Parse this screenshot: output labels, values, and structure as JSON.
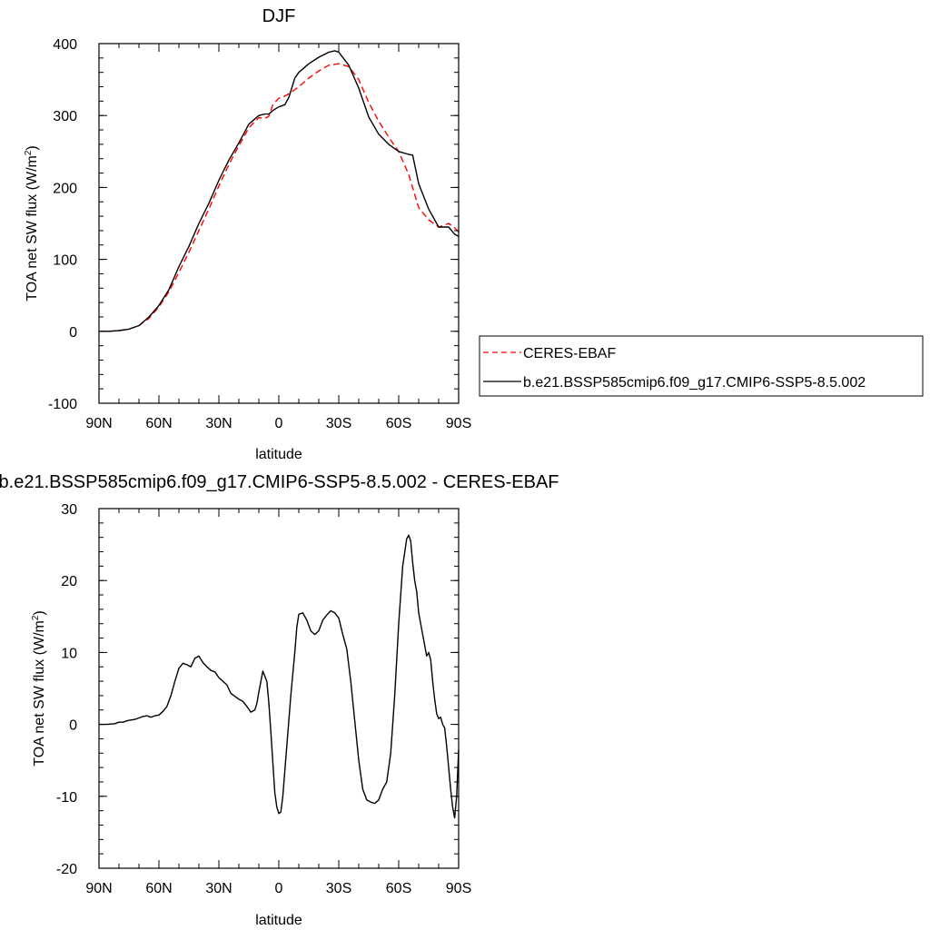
{
  "chart_data": [
    {
      "type": "line",
      "title": "DJF",
      "xlabel": "latitude",
      "ylabel": "TOA net SW flux (W/m",
      "ylabel_sup": "2",
      "ylabel_close": ")",
      "xlim": [
        90,
        -90
      ],
      "ylim": [
        -100,
        400
      ],
      "x_ticks": [
        90,
        60,
        30,
        0,
        -30,
        -60,
        -90
      ],
      "x_tick_labels": [
        "90N",
        "60N",
        "30N",
        "0",
        "30S",
        "60S",
        "90S"
      ],
      "y_ticks": [
        -100,
        0,
        100,
        200,
        300,
        400
      ],
      "y_tick_labels": [
        "-100",
        "0",
        "100",
        "200",
        "300",
        "400"
      ],
      "legend_position": "right",
      "series": [
        {
          "name": "CERES-EBAF",
          "color": "#ff0000",
          "dash": "dashed",
          "x": [
            90,
            85,
            80,
            75,
            70,
            65,
            60,
            55,
            50,
            45,
            40,
            35,
            30,
            25,
            20,
            15,
            10,
            7,
            5,
            3,
            0,
            -3,
            -5,
            -10,
            -15,
            -20,
            -25,
            -30,
            -35,
            -40,
            -45,
            -50,
            -55,
            -60,
            -65,
            -70,
            -75,
            -80,
            -85,
            -88,
            -90
          ],
          "y": [
            0,
            0,
            1,
            3,
            8,
            18,
            34,
            55,
            82,
            110,
            140,
            170,
            202,
            232,
            258,
            283,
            297,
            296,
            299,
            315,
            324,
            327,
            330,
            340,
            352,
            362,
            370,
            372,
            368,
            350,
            318,
            292,
            270,
            250,
            218,
            172,
            155,
            145,
            150,
            144,
            138
          ]
        },
        {
          "name": "b.e21.BSSP585cmip6.f09_g17.CMIP6-SSP5-8.5.002",
          "color": "#000000",
          "dash": "solid",
          "x": [
            90,
            85,
            80,
            75,
            70,
            65,
            60,
            55,
            50,
            45,
            40,
            35,
            30,
            25,
            20,
            15,
            10,
            7,
            5,
            3,
            0,
            -3,
            -5,
            -8,
            -10,
            -15,
            -20,
            -25,
            -28,
            -30,
            -35,
            -40,
            -45,
            -50,
            -55,
            -60,
            -65,
            -67,
            -70,
            -75,
            -80,
            -85,
            -88,
            -90
          ],
          "y": [
            0,
            0,
            1,
            3,
            8,
            20,
            36,
            58,
            90,
            118,
            150,
            178,
            210,
            238,
            262,
            288,
            300,
            302,
            302,
            307,
            312,
            315,
            325,
            352,
            360,
            372,
            381,
            388,
            390,
            388,
            370,
            338,
            298,
            274,
            260,
            250,
            246,
            245,
            205,
            170,
            145,
            145,
            135,
            132
          ]
        }
      ]
    },
    {
      "type": "line",
      "title": "b.e21.BSSP585cmip6.f09_g17.CMIP6-SSP5-8.5.002 - CERES-EBAF",
      "xlabel": "latitude",
      "ylabel": "TOA net SW flux (W/m",
      "ylabel_sup": "2",
      "ylabel_close": ")",
      "xlim": [
        90,
        -90
      ],
      "ylim": [
        -20,
        30
      ],
      "x_ticks": [
        90,
        60,
        30,
        0,
        -30,
        -60,
        -90
      ],
      "x_tick_labels": [
        "90N",
        "60N",
        "30N",
        "0",
        "30S",
        "60S",
        "90S"
      ],
      "y_ticks": [
        -20,
        -10,
        0,
        10,
        20,
        30
      ],
      "y_tick_labels": [
        "-20",
        "-10",
        "0",
        "10",
        "20",
        "30"
      ],
      "series": [
        {
          "color": "#000000",
          "x": [
            90,
            86,
            82,
            80,
            78,
            76,
            74,
            72,
            70,
            68,
            66,
            64,
            62,
            60,
            58,
            56,
            54,
            52,
            50,
            48,
            46,
            44,
            42,
            40,
            38,
            36,
            34,
            32,
            30,
            28,
            26,
            24,
            22,
            20,
            18,
            16,
            14,
            12,
            11,
            10,
            8,
            6,
            5,
            4,
            2,
            1,
            0,
            -1,
            -2,
            -4,
            -6,
            -8,
            -9,
            -10,
            -12,
            -14,
            -16,
            -18,
            -20,
            -22,
            -24,
            -26,
            -28,
            -30,
            -32,
            -34,
            -36,
            -38,
            -40,
            -42,
            -44,
            -46,
            -48,
            -50,
            -52,
            -54,
            -56,
            -58,
            -60,
            -62,
            -64,
            -65,
            -66,
            -67,
            -68,
            -69,
            -70,
            -71,
            -72,
            -73,
            -74,
            -75,
            -76,
            -77,
            -78,
            -79,
            -80,
            -81,
            -82,
            -83,
            -84,
            -85,
            -86,
            -87,
            -88,
            -89,
            -90
          ],
          "y": [
            0,
            0,
            0.1,
            0.3,
            0.3,
            0.5,
            0.6,
            0.7,
            0.9,
            1.1,
            1.2,
            1.0,
            1.2,
            1.3,
            1.8,
            2.5,
            4.0,
            6.0,
            7.8,
            8.5,
            8.3,
            8.0,
            9.2,
            9.5,
            8.6,
            8.0,
            7.5,
            7.3,
            6.5,
            6.0,
            5.5,
            4.3,
            3.9,
            3.5,
            3.2,
            2.5,
            1.7,
            2.0,
            2.9,
            4.5,
            7.4,
            6.0,
            3.0,
            -1.0,
            -9.5,
            -11.5,
            -12.4,
            -12.2,
            -10.0,
            -3.0,
            4.0,
            10.0,
            13.5,
            15.3,
            15.5,
            14.5,
            13.0,
            12.5,
            13.0,
            14.5,
            15.2,
            15.8,
            15.5,
            14.8,
            12.5,
            10.5,
            6.0,
            0.5,
            -5.0,
            -9.0,
            -10.5,
            -10.8,
            -11.0,
            -10.5,
            -9.0,
            -8.0,
            -4.0,
            4.0,
            14.0,
            22.0,
            25.8,
            26.3,
            25.5,
            22.5,
            20.0,
            18.5,
            15.5,
            14.0,
            12.5,
            11.0,
            9.5,
            10.0,
            9.0,
            6.0,
            3.5,
            1.5,
            0.8,
            1.0,
            0.0,
            -0.5,
            -3.0,
            -6.0,
            -9.0,
            -11.5,
            -13.0,
            -10.0,
            -3.5
          ]
        }
      ]
    }
  ]
}
